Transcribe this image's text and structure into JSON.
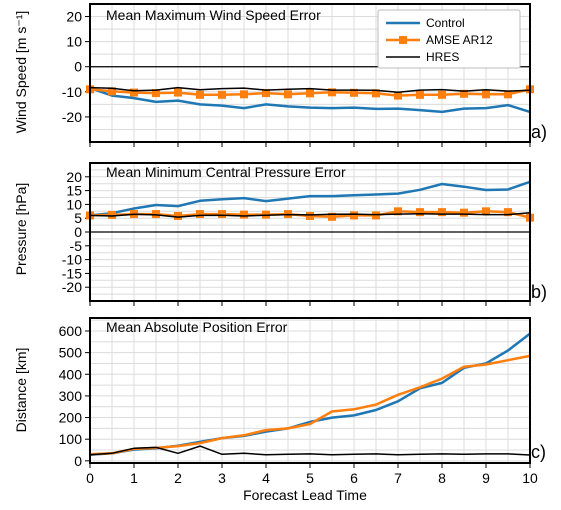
{
  "figure": {
    "xlabel": "Forecast Lead Time",
    "x_ticks": [
      "0",
      "1",
      "2",
      "3",
      "4",
      "5",
      "6",
      "7",
      "8",
      "9",
      "10"
    ]
  },
  "legend": {
    "entries": [
      {
        "label": "Control",
        "color": "#1f77b4",
        "marker": "none"
      },
      {
        "label": "AMSE AR12",
        "color": "#ff7f0e",
        "marker": "square"
      },
      {
        "label": "HRES",
        "color": "#000000",
        "marker": "none"
      }
    ]
  },
  "chart_data": [
    {
      "type": "line",
      "panel_label": "a)",
      "title": "Mean Maximum Wind Speed Error",
      "ylabel": "Wind Speed [m s⁻¹]",
      "xlim": [
        0,
        10
      ],
      "ylim": [
        -30,
        25
      ],
      "yticks": [
        20,
        10,
        0,
        -10,
        -20
      ],
      "zero_line": true,
      "grid": true,
      "legend_position": "top-right",
      "x": [
        0,
        0.5,
        1,
        1.5,
        2,
        2.5,
        3,
        3.5,
        4,
        4.5,
        5,
        5.5,
        6,
        6.5,
        7,
        7.5,
        8,
        8.5,
        9,
        9.5,
        10
      ],
      "series": [
        {
          "name": "Control",
          "color": "#1f77b4",
          "marker": "none",
          "values": [
            -8.5,
            -11.5,
            -12.5,
            -14,
            -13.5,
            -15,
            -15.5,
            -16.5,
            -15,
            -15.8,
            -16.3,
            -16.5,
            -16.3,
            -16.8,
            -16.7,
            -17.3,
            -18,
            -16.7,
            -16.5,
            -15.3,
            -18
          ]
        },
        {
          "name": "AMSE AR12",
          "color": "#ff7f0e",
          "marker": "square",
          "values": [
            -9,
            -9.8,
            -10.3,
            -10.5,
            -10.3,
            -11.2,
            -11.2,
            -11,
            -10.5,
            -11,
            -10.6,
            -10.2,
            -10.4,
            -10.6,
            -11.5,
            -11.2,
            -11.2,
            -10.8,
            -11,
            -11,
            -9
          ]
        },
        {
          "name": "HRES",
          "color": "#000000",
          "marker": "none",
          "values": [
            -8.3,
            -8.6,
            -9.6,
            -9.3,
            -8.3,
            -9.2,
            -8.7,
            -8.5,
            -9.3,
            -9,
            -8.7,
            -9.3,
            -9.3,
            -9.4,
            -10.2,
            -9.3,
            -9.1,
            -9.7,
            -9.2,
            -9.7,
            -9.4
          ]
        }
      ]
    },
    {
      "type": "line",
      "panel_label": "b)",
      "title": "Mean Minimum Central Pressure Error",
      "ylabel": "Pressure [hPa]",
      "xlim": [
        0,
        10
      ],
      "ylim": [
        -25,
        25
      ],
      "yticks": [
        20,
        15,
        10,
        5,
        0,
        -5,
        -10,
        -15,
        -20
      ],
      "zero_line": true,
      "grid": true,
      "x": [
        0,
        0.5,
        1,
        1.5,
        2,
        2.5,
        3,
        3.5,
        4,
        4.5,
        5,
        5.5,
        6,
        6.5,
        7,
        7.5,
        8,
        8.5,
        9,
        9.5,
        10
      ],
      "series": [
        {
          "name": "Control",
          "color": "#1f77b4",
          "marker": "none",
          "values": [
            6,
            6.8,
            8.5,
            9.8,
            9.4,
            11.3,
            11.9,
            12.3,
            11.2,
            12.1,
            13,
            13,
            13.3,
            13.6,
            13.9,
            15.3,
            17.4,
            16.4,
            15.2,
            15.4,
            18.2
          ]
        },
        {
          "name": "AMSE AR12",
          "color": "#ff7f0e",
          "marker": "square",
          "values": [
            6,
            6.2,
            6.5,
            6.5,
            5.8,
            6.5,
            6.5,
            6.3,
            6.3,
            6.5,
            5.8,
            5.5,
            6,
            6,
            7.5,
            7.2,
            7.2,
            7,
            7.5,
            7.2,
            5.2
          ]
        },
        {
          "name": "HRES",
          "color": "#000000",
          "marker": "none",
          "values": [
            6,
            5.8,
            6.4,
            6.2,
            5.4,
            6,
            6.1,
            5.8,
            6.1,
            6.3,
            6.2,
            6.4,
            6.5,
            6.3,
            6.5,
            6.6,
            6.5,
            6.5,
            6.3,
            6.3,
            7
          ]
        }
      ]
    },
    {
      "type": "line",
      "panel_label": "c)",
      "title": "Mean Absolute Position Error",
      "ylabel": "Distance [km]",
      "xlim": [
        0,
        10
      ],
      "ylim": [
        -10,
        660
      ],
      "yticks": [
        600,
        500,
        400,
        300,
        200,
        100,
        0
      ],
      "zero_line": false,
      "grid": true,
      "x": [
        0,
        0.5,
        1,
        1.5,
        2,
        2.5,
        3,
        3.5,
        4,
        4.5,
        5,
        5.5,
        6,
        6.5,
        7,
        7.5,
        8,
        8.5,
        9,
        9.5,
        10
      ],
      "series": [
        {
          "name": "Control",
          "color": "#1f77b4",
          "marker": "none",
          "values": [
            28,
            35,
            52,
            58,
            70,
            88,
            105,
            115,
            135,
            150,
            180,
            200,
            210,
            235,
            275,
            335,
            360,
            430,
            450,
            510,
            588
          ]
        },
        {
          "name": "AMSE AR12",
          "color": "#ff7f0e",
          "marker": "none",
          "values": [
            30,
            35,
            55,
            60,
            68,
            82,
            105,
            118,
            142,
            150,
            170,
            228,
            238,
            260,
            305,
            340,
            380,
            435,
            445,
            465,
            485
          ]
        },
        {
          "name": "HRES",
          "color": "#000000",
          "marker": "none",
          "values": [
            28,
            35,
            58,
            62,
            35,
            68,
            30,
            35,
            28,
            30,
            32,
            28,
            30,
            32,
            28,
            30,
            32,
            30,
            32,
            32,
            27
          ]
        }
      ]
    }
  ]
}
